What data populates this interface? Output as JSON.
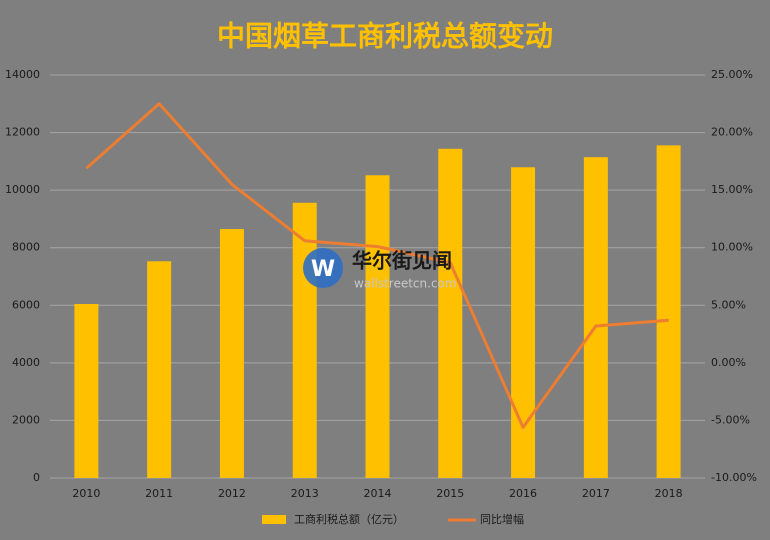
{
  "chart_data": {
    "type": "bar",
    "title": "中国烟草工商利税总额变动",
    "categories": [
      "2010",
      "2011",
      "2012",
      "2013",
      "2014",
      "2015",
      "2016",
      "2017",
      "2018"
    ],
    "series": [
      {
        "name": "工商利税总额（亿元）",
        "type": "bar",
        "color": "#ffc000",
        "values": [
          6045,
          7529,
          8649,
          9560,
          10517,
          11436,
          10795,
          11145,
          11556
        ]
      },
      {
        "name": "同比增幅",
        "type": "line",
        "axis": "y2",
        "color": "#ed7d31",
        "values": [
          16.9,
          22.5,
          15.5,
          10.6,
          10.1,
          8.7,
          -5.6,
          3.2,
          3.7
        ]
      }
    ],
    "ylim": [
      0,
      14000
    ],
    "yticks": [
      0,
      2000,
      4000,
      6000,
      8000,
      10000,
      12000,
      14000
    ],
    "y2lim": [
      -10,
      25
    ],
    "y2ticks": [
      {
        "value": -10,
        "label": "-10.00%"
      },
      {
        "value": -5,
        "label": "-5.00%"
      },
      {
        "value": 0,
        "label": "0.00%"
      },
      {
        "value": 5,
        "label": "5.00%"
      },
      {
        "value": 10,
        "label": "10.00%"
      },
      {
        "value": 15,
        "label": "15.00%"
      },
      {
        "value": 20,
        "label": "20.00%"
      },
      {
        "value": 25,
        "label": "25.00%"
      }
    ],
    "grid": true,
    "legend": "bottom",
    "watermark": [
      "华尔街见闻",
      "wallstreetcn.com"
    ]
  }
}
